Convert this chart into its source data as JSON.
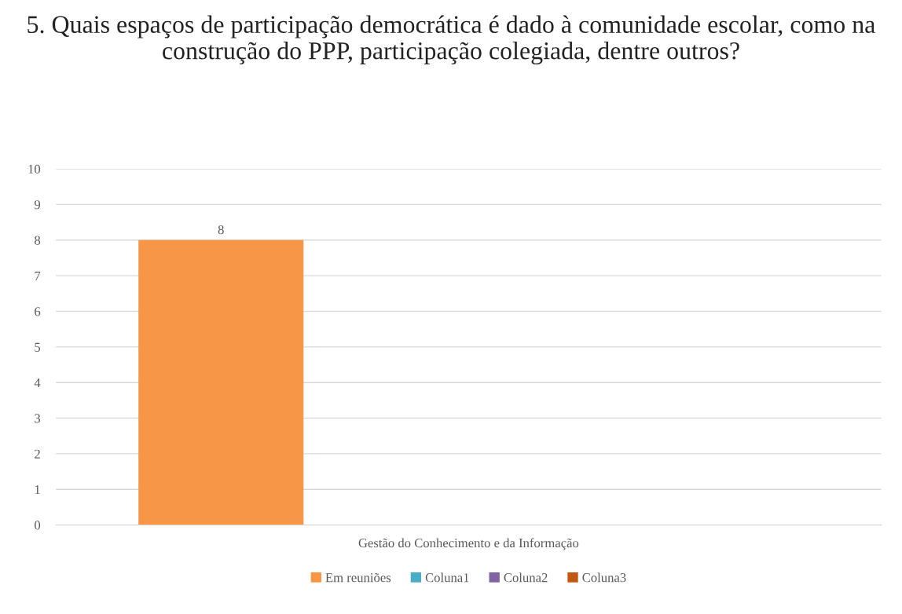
{
  "chart_data": {
    "type": "bar",
    "title": "5. Quais espaços de participação democrática é dado à comunidade escolar, como na construção do PPP, participação colegiada, dentre outros?",
    "categories": [
      "Gestão do Conhecimento e da Informação"
    ],
    "series": [
      {
        "name": "Em reuniões",
        "color": "#f79646",
        "values": [
          8
        ]
      },
      {
        "name": "Coluna1",
        "color": "#4bacc6",
        "values": [
          null
        ]
      },
      {
        "name": "Coluna2",
        "color": "#8064a2",
        "values": [
          null
        ]
      },
      {
        "name": "Coluna3",
        "color": "#c0580f",
        "values": [
          null
        ]
      }
    ],
    "ylim": [
      0,
      10
    ],
    "yticks": [
      0,
      1,
      2,
      3,
      4,
      5,
      6,
      7,
      8,
      9,
      10
    ],
    "grid": "y",
    "legend": "bottom",
    "data_labels": true
  }
}
